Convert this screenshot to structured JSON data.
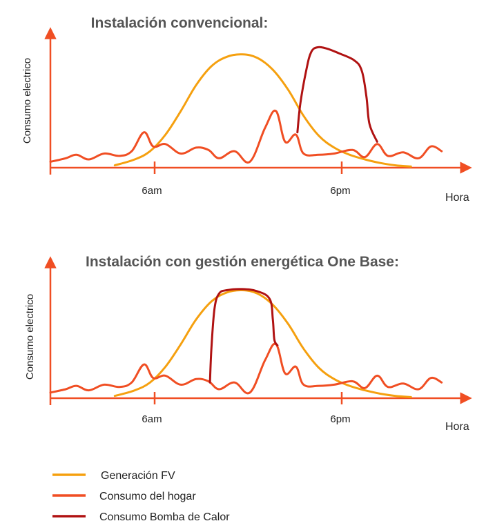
{
  "chart_data": [
    {
      "type": "line",
      "title": "Instalación convencional:",
      "xlabel": "Hora",
      "ylabel": "Consumo electrico",
      "xticks": [
        "6am",
        "6pm"
      ],
      "tick_hours": [
        6,
        18
      ],
      "xlim": [
        -0.5,
        26.5
      ],
      "ylim": [
        0,
        1
      ],
      "grid": false,
      "series": [
        {
          "name": "Generación FV",
          "color": "#F5A00F",
          "points": [
            [
              3.7,
              0.02
            ],
            [
              5,
              0.07
            ],
            [
              6,
              0.14
            ],
            [
              7,
              0.28
            ],
            [
              8,
              0.48
            ],
            [
              9,
              0.7
            ],
            [
              10,
              0.86
            ],
            [
              11,
              0.94
            ],
            [
              12,
              0.96
            ],
            [
              13,
              0.93
            ],
            [
              14,
              0.83
            ],
            [
              15,
              0.66
            ],
            [
              16,
              0.44
            ],
            [
              17,
              0.27
            ],
            [
              18,
              0.17
            ],
            [
              19,
              0.11
            ],
            [
              20,
              0.07
            ],
            [
              21,
              0.04
            ],
            [
              22,
              0.02
            ],
            [
              23,
              0.01
            ]
          ]
        },
        {
          "name": "Consumo del hogar",
          "color": "#F04E23",
          "points": [
            [
              -0.5,
              0.05
            ],
            [
              0.5,
              0.08
            ],
            [
              1.2,
              0.11
            ],
            [
              2,
              0.07
            ],
            [
              3,
              0.12
            ],
            [
              4,
              0.1
            ],
            [
              4.8,
              0.14
            ],
            [
              5.6,
              0.3
            ],
            [
              6.2,
              0.18
            ],
            [
              7,
              0.2
            ],
            [
              8,
              0.12
            ],
            [
              9,
              0.17
            ],
            [
              9.8,
              0.15
            ],
            [
              10.5,
              0.08
            ],
            [
              11.5,
              0.14
            ],
            [
              12.5,
              0.05
            ],
            [
              13.5,
              0.34
            ],
            [
              14.2,
              0.48
            ],
            [
              14.8,
              0.22
            ],
            [
              15.5,
              0.28
            ],
            [
              16,
              0.12
            ],
            [
              17,
              0.11
            ],
            [
              18,
              0.12
            ],
            [
              19.2,
              0.15
            ],
            [
              20,
              0.09
            ],
            [
              20.8,
              0.2
            ],
            [
              21.5,
              0.1
            ],
            [
              22.5,
              0.13
            ],
            [
              23.5,
              0.08
            ],
            [
              24.3,
              0.18
            ],
            [
              25,
              0.14
            ]
          ]
        },
        {
          "name": "Consumo Bomba de Calor",
          "color": "#B01212",
          "points": [
            [
              15.6,
              0.3
            ],
            [
              15.8,
              0.55
            ],
            [
              16.2,
              0.84
            ],
            [
              16.5,
              0.98
            ],
            [
              16.9,
              1.02
            ],
            [
              17.5,
              1.01
            ],
            [
              18.3,
              0.97
            ],
            [
              19.3,
              0.91
            ],
            [
              19.8,
              0.82
            ],
            [
              20.1,
              0.6
            ],
            [
              20.3,
              0.37
            ],
            [
              20.8,
              0.22
            ]
          ]
        }
      ]
    },
    {
      "type": "line",
      "title": "Instalación con gestión energética One Base:",
      "xlabel": "Hora",
      "ylabel": "Consumo electrico",
      "xticks": [
        "6am",
        "6pm"
      ],
      "tick_hours": [
        6,
        18
      ],
      "xlim": [
        -0.5,
        26.5
      ],
      "ylim": [
        0,
        1
      ],
      "grid": false,
      "series": [
        {
          "name": "Generación FV",
          "color": "#F5A00F",
          "points": [
            [
              3.7,
              0.02
            ],
            [
              5,
              0.07
            ],
            [
              6,
              0.14
            ],
            [
              7,
              0.28
            ],
            [
              8,
              0.48
            ],
            [
              9,
              0.7
            ],
            [
              10,
              0.86
            ],
            [
              11,
              0.94
            ],
            [
              12,
              0.96
            ],
            [
              13,
              0.93
            ],
            [
              14,
              0.83
            ],
            [
              15,
              0.66
            ],
            [
              16,
              0.44
            ],
            [
              17,
              0.27
            ],
            [
              18,
              0.17
            ],
            [
              19,
              0.11
            ],
            [
              20,
              0.07
            ],
            [
              21,
              0.04
            ],
            [
              22,
              0.02
            ],
            [
              23,
              0.01
            ]
          ]
        },
        {
          "name": "Consumo del hogar",
          "color": "#F04E23",
          "points": [
            [
              -0.5,
              0.05
            ],
            [
              0.5,
              0.08
            ],
            [
              1.2,
              0.11
            ],
            [
              2,
              0.07
            ],
            [
              3,
              0.12
            ],
            [
              4,
              0.1
            ],
            [
              4.8,
              0.14
            ],
            [
              5.6,
              0.3
            ],
            [
              6.2,
              0.18
            ],
            [
              7,
              0.2
            ],
            [
              8,
              0.12
            ],
            [
              9,
              0.17
            ],
            [
              9.8,
              0.15
            ],
            [
              10.5,
              0.08
            ],
            [
              11.5,
              0.14
            ],
            [
              12.5,
              0.05
            ],
            [
              13.5,
              0.34
            ],
            [
              14.2,
              0.48
            ],
            [
              14.8,
              0.22
            ],
            [
              15.5,
              0.28
            ],
            [
              16,
              0.12
            ],
            [
              17,
              0.11
            ],
            [
              18,
              0.12
            ],
            [
              19.2,
              0.15
            ],
            [
              20,
              0.09
            ],
            [
              20.8,
              0.2
            ],
            [
              21.5,
              0.1
            ],
            [
              22.5,
              0.13
            ],
            [
              23.5,
              0.08
            ],
            [
              24.3,
              0.18
            ],
            [
              25,
              0.14
            ]
          ]
        },
        {
          "name": "Consumo Bomba de Calor",
          "color": "#B01212",
          "points": [
            [
              9.9,
              0.14
            ],
            [
              10.0,
              0.45
            ],
            [
              10.2,
              0.8
            ],
            [
              10.5,
              0.93
            ],
            [
              11.0,
              0.96
            ],
            [
              12.0,
              0.97
            ],
            [
              13.0,
              0.95
            ],
            [
              13.8,
              0.88
            ],
            [
              14.0,
              0.7
            ],
            [
              14.1,
              0.52
            ],
            [
              14.3,
              0.47
            ]
          ]
        }
      ]
    }
  ],
  "legend": [
    {
      "label": "Generación FV",
      "color": "#F5A00F"
    },
    {
      "label": "Consumo del hogar",
      "color": "#F04E23"
    },
    {
      "label": "Consumo Bomba de Calor",
      "color": "#B01212"
    }
  ],
  "colors": {
    "axis": "#F04E23",
    "title": "#555555"
  }
}
